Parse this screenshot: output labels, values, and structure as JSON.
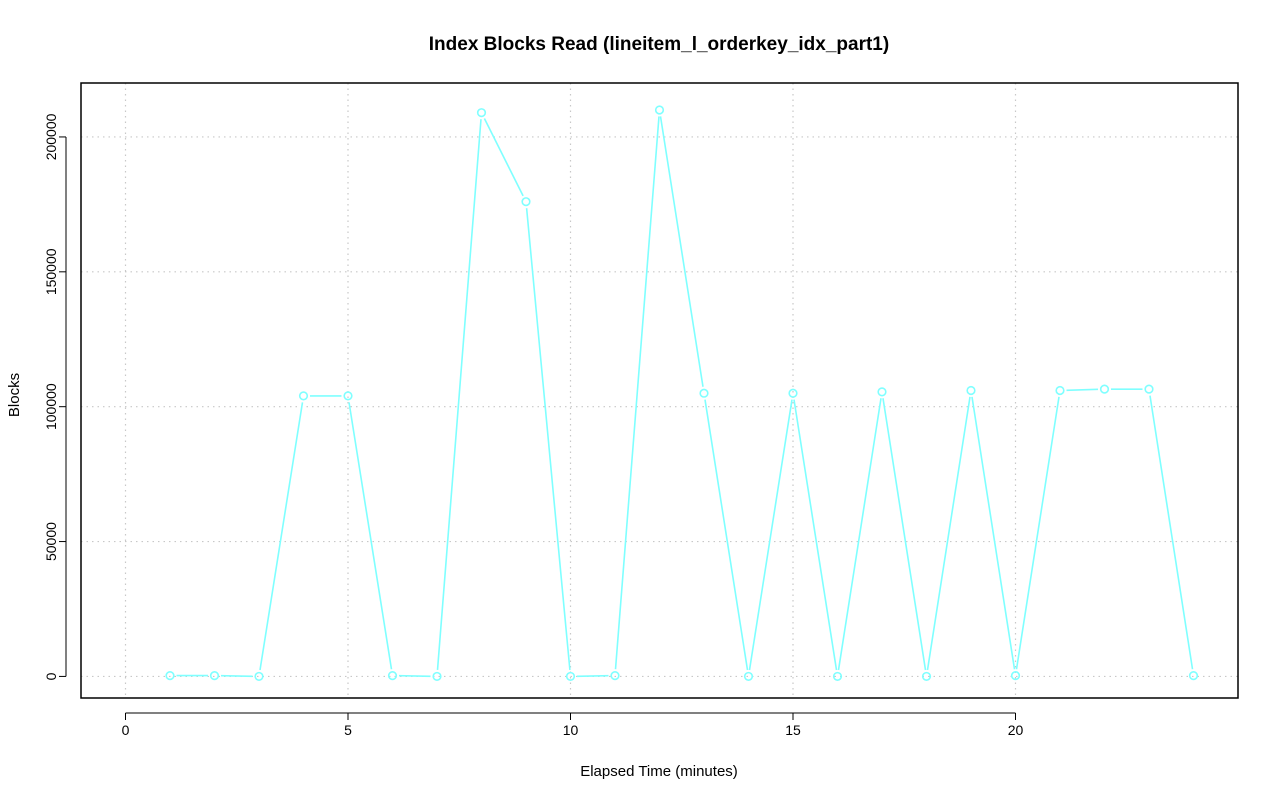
{
  "chart_data": {
    "type": "line",
    "title": "Index Blocks Read (lineitem_l_orderkey_idx_part1)",
    "xlabel": "Elapsed Time (minutes)",
    "ylabel": "Blocks",
    "xlim": [
      -1,
      25
    ],
    "ylim": [
      -8000,
      220000
    ],
    "x_ticks": [
      0,
      5,
      10,
      15,
      20
    ],
    "y_ticks": [
      0,
      50000,
      100000,
      150000,
      200000
    ],
    "grid": true,
    "series": [
      {
        "color": "#7fffff",
        "marker": "open-circle",
        "x": [
          1,
          2,
          3,
          4,
          5,
          6,
          7,
          8,
          9,
          10,
          11,
          12,
          13,
          14,
          15,
          16,
          17,
          18,
          19,
          20,
          21,
          22,
          23,
          24
        ],
        "values": [
          300,
          300,
          0,
          104000,
          104000,
          300,
          0,
          209000,
          176000,
          0,
          300,
          210000,
          105000,
          0,
          105000,
          0,
          105500,
          0,
          106000,
          300,
          106000,
          106500,
          106500,
          300
        ]
      }
    ]
  }
}
